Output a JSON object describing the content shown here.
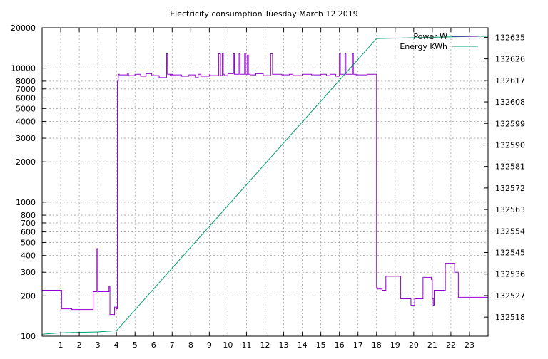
{
  "chart_data": {
    "type": "line",
    "title": "Electricity consumption Tuesday March 12 2019",
    "x_ticks": [
      1,
      2,
      3,
      4,
      5,
      6,
      7,
      8,
      9,
      10,
      11,
      12,
      13,
      14,
      15,
      16,
      17,
      18,
      19,
      20,
      21,
      22,
      23
    ],
    "xlim": [
      0,
      24
    ],
    "y_left": {
      "scale": "log",
      "lim": [
        100,
        20000
      ],
      "tick_labels": [
        "100",
        "200",
        "300",
        "400",
        "500",
        "600",
        "700",
        "800",
        "1000",
        "2000",
        "3000",
        "4000",
        "5000",
        "6000",
        "7000",
        "8000",
        "10000",
        "20000"
      ]
    },
    "y_right": {
      "scale": "linear",
      "lim": [
        132510,
        132639
      ],
      "tick_labels": [
        "132518",
        "132527",
        "132536",
        "132545",
        "132554",
        "132563",
        "132572",
        "132581",
        "132590",
        "132599",
        "132608",
        "132617",
        "132626",
        "132635"
      ]
    },
    "legend_position": "top-right",
    "grid": true,
    "series": [
      {
        "name": "Power W",
        "axis": "left",
        "color": "#9400d3",
        "x": [
          0,
          1.05,
          1.05,
          1.6,
          1.6,
          1.75,
          1.75,
          1.9,
          1.9,
          2.75,
          2.75,
          2.95,
          2.95,
          3.0,
          3.0,
          3.05,
          3.05,
          3.6,
          3.6,
          3.65,
          3.65,
          3.7,
          3.7,
          3.9,
          3.9,
          4.0,
          4.0,
          4.05,
          4.05,
          4.1,
          4.1,
          4.15,
          4.15,
          4.6,
          4.6,
          4.65,
          4.65,
          5.0,
          5.0,
          5.3,
          5.3,
          5.6,
          5.6,
          5.9,
          5.9,
          6.3,
          6.3,
          6.7,
          6.7,
          6.75,
          6.75,
          6.9,
          6.9,
          6.95,
          6.95,
          7.0,
          7.0,
          7.5,
          7.5,
          7.9,
          7.9,
          8.25,
          8.25,
          8.4,
          8.4,
          8.55,
          8.55,
          9.0,
          9.0,
          9.05,
          9.05,
          9.5,
          9.5,
          9.6,
          9.6,
          9.7,
          9.7,
          9.75,
          9.75,
          9.8,
          9.8,
          10.0,
          10.0,
          10.3,
          10.3,
          10.35,
          10.35,
          10.6,
          10.6,
          10.65,
          10.65,
          10.9,
          10.9,
          10.95,
          10.95,
          11.05,
          11.05,
          11.1,
          11.1,
          11.2,
          11.2,
          11.5,
          11.5,
          11.9,
          11.9,
          12.3,
          12.3,
          12.4,
          12.4,
          12.9,
          12.9,
          13.3,
          13.3,
          13.5,
          13.5,
          14.0,
          14.0,
          14.5,
          14.5,
          15.0,
          15.0,
          15.3,
          15.3,
          15.5,
          15.5,
          15.8,
          15.8,
          16.0,
          16.0,
          16.05,
          16.05,
          16.3,
          16.3,
          16.35,
          16.35,
          16.7,
          16.7,
          16.75,
          16.75,
          16.9,
          16.9,
          17.5,
          17.5,
          18.0,
          18.0,
          18.05,
          18.05,
          18.3,
          18.3,
          18.5,
          18.5,
          19.3,
          19.3,
          19.8,
          19.8,
          19.85,
          19.85,
          20.05,
          20.05,
          20.5,
          20.5,
          20.95,
          20.95,
          21.0,
          21.0,
          21.05,
          21.05,
          21.1,
          21.1,
          21.7,
          21.7,
          22.2,
          22.2,
          22.4,
          22.4,
          24.0
        ],
        "y": [
          220,
          220,
          160,
          160,
          158,
          158,
          158,
          158,
          158,
          158,
          215,
          215,
          450,
          450,
          215,
          215,
          215,
          215,
          235,
          235,
          145,
          145,
          145,
          145,
          165,
          165,
          160,
          160,
          8000,
          8000,
          9000,
          9000,
          8900,
          8900,
          9100,
          9100,
          8800,
          8800,
          9000,
          9000,
          8700,
          8700,
          9100,
          9100,
          8800,
          8800,
          8500,
          8500,
          12800,
          12800,
          9000,
          9000,
          8800,
          8800,
          9000,
          9000,
          8900,
          8900,
          8700,
          8700,
          8900,
          8900,
          8500,
          8500,
          9000,
          9000,
          8700,
          8700,
          8900,
          8900,
          8800,
          8800,
          12800,
          12800,
          8800,
          8800,
          12800,
          12800,
          9000,
          9000,
          8800,
          8800,
          9100,
          9100,
          12800,
          12800,
          9000,
          9000,
          12800,
          12800,
          9000,
          9000,
          12800,
          12800,
          9000,
          9000,
          12500,
          12500,
          9000,
          9000,
          8900,
          8900,
          9100,
          9100,
          8800,
          8800,
          12800,
          12800,
          9000,
          9000,
          8900,
          8900,
          9000,
          9000,
          8800,
          8800,
          9000,
          9000,
          8900,
          8900,
          9000,
          9000,
          8800,
          8800,
          9000,
          9000,
          8700,
          8700,
          12800,
          12800,
          9000,
          9000,
          12800,
          12800,
          9000,
          9000,
          12800,
          12800,
          9000,
          9000,
          8900,
          8900,
          9000,
          9000,
          230,
          230,
          225,
          225,
          220,
          220,
          280,
          280,
          190,
          190,
          190,
          190,
          170,
          170,
          190,
          190,
          275,
          275,
          265,
          265,
          190,
          190,
          170,
          170,
          220,
          220,
          350,
          350,
          300,
          300,
          195,
          195
        ]
      },
      {
        "name": "Energy KWh",
        "axis": "right",
        "color": "#009e73",
        "x": [
          0,
          1,
          2,
          3,
          4.0,
          18.0,
          24.0
        ],
        "y": [
          132510.8,
          132511.4,
          132511.6,
          132511.8,
          132512.3,
          132634.5,
          132635.5
        ]
      }
    ]
  }
}
